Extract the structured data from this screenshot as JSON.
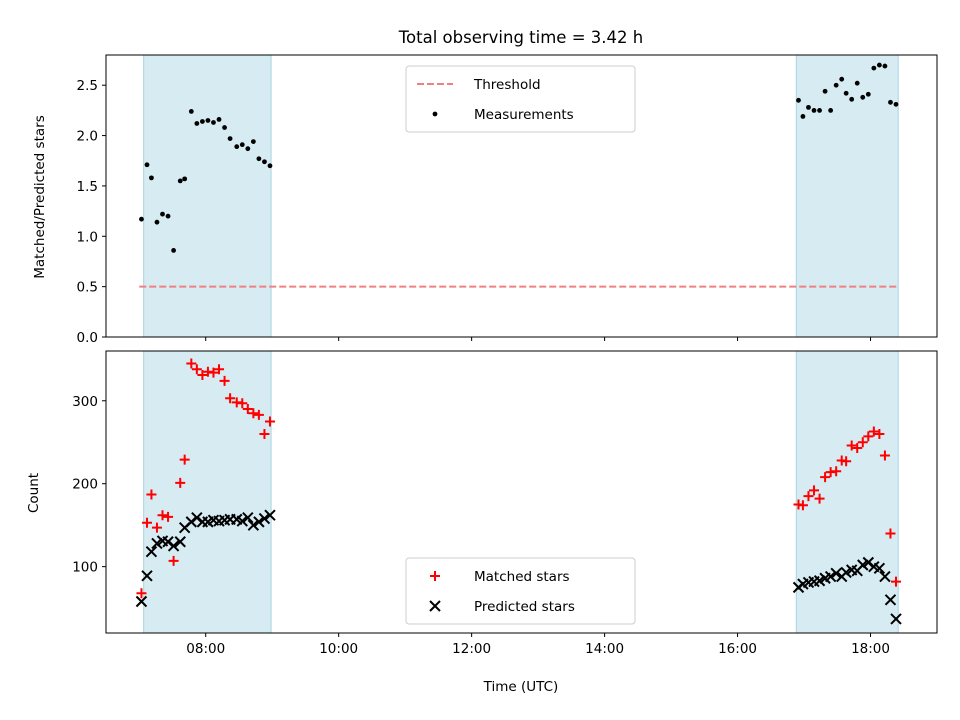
{
  "chart_data": {
    "title": "Total observing time = 3.42 h",
    "xlabel": "Time (UTC)",
    "x_unit": "hours UTC",
    "xlim": [
      "06:30",
      "19:00"
    ],
    "x_ticks": [
      "08:00",
      "10:00",
      "12:00",
      "14:00",
      "16:00",
      "18:00"
    ],
    "shaded_intervals": [
      [
        "07:04",
        "08:59"
      ],
      [
        "16:53",
        "18:25"
      ]
    ],
    "panels": [
      {
        "type": "scatter",
        "ylabel": "Matched/Predicted stars",
        "ylim": [
          0,
          2.8
        ],
        "y_ticks": [
          "0.0",
          "0.5",
          "1.0",
          "1.5",
          "2.0",
          "2.5"
        ],
        "legend": {
          "position": "upper center",
          "entries": [
            "Threshold",
            "Measurements"
          ]
        },
        "threshold": {
          "name": "Threshold",
          "value": 0.5,
          "color": "#f08080",
          "style": "dashed"
        },
        "series": [
          {
            "name": "Measurements",
            "color": "#000000",
            "marker": "dot",
            "x": [
              "07:02",
              "07:07",
              "07:11",
              "07:16",
              "07:21",
              "07:26",
              "07:31",
              "07:37",
              "07:41",
              "07:47",
              "07:52",
              "07:57",
              "08:02",
              "08:07",
              "08:12",
              "08:17",
              "08:22",
              "08:28",
              "08:33",
              "08:38",
              "08:43",
              "08:48",
              "08:53",
              "08:58",
              "16:55",
              "16:59",
              "17:04",
              "17:09",
              "17:14",
              "17:19",
              "17:24",
              "17:29",
              "17:34",
              "17:38",
              "17:43",
              "17:48",
              "17:53",
              "17:58",
              "18:03",
              "18:08",
              "18:13",
              "18:18",
              "18:23"
            ],
            "y": [
              1.17,
              1.71,
              1.58,
              1.14,
              1.22,
              1.2,
              0.86,
              1.55,
              1.57,
              2.24,
              2.12,
              2.14,
              2.15,
              2.13,
              2.16,
              2.08,
              1.97,
              1.89,
              1.91,
              1.87,
              1.94,
              1.77,
              1.74,
              1.7,
              2.35,
              2.19,
              2.28,
              2.25,
              2.25,
              2.44,
              2.25,
              2.5,
              2.56,
              2.42,
              2.36,
              2.52,
              2.38,
              2.41,
              2.67,
              2.7,
              2.69,
              2.33,
              2.31
            ]
          }
        ]
      },
      {
        "type": "scatter",
        "ylabel": "Count",
        "ylim": [
          20,
          360
        ],
        "y_ticks": [
          "100",
          "200",
          "300"
        ],
        "legend": {
          "position": "lower center",
          "entries": [
            "Matched stars",
            "Predicted stars"
          ]
        },
        "series": [
          {
            "name": "Matched stars",
            "color": "#ff0000",
            "marker": "plus",
            "x": [
              "07:02",
              "07:07",
              "07:11",
              "07:16",
              "07:21",
              "07:26",
              "07:31",
              "07:37",
              "07:41",
              "07:47",
              "07:52",
              "07:57",
              "08:02",
              "08:07",
              "08:12",
              "08:17",
              "08:22",
              "08:28",
              "08:33",
              "08:38",
              "08:43",
              "08:48",
              "08:53",
              "08:58",
              "16:55",
              "16:59",
              "17:04",
              "17:09",
              "17:14",
              "17:19",
              "17:24",
              "17:29",
              "17:34",
              "17:38",
              "17:43",
              "17:48",
              "17:53",
              "17:58",
              "18:03",
              "18:08",
              "18:13",
              "18:18",
              "18:23"
            ],
            "y": [
              68,
              153,
              187,
              147,
              162,
              160,
              107,
              201,
              229,
              345,
              338,
              331,
              335,
              334,
              338,
              324,
              303,
              298,
              297,
              290,
              285,
              283,
              260,
              275,
              175,
              174,
              185,
              192,
              182,
              208,
              214,
              215,
              228,
              227,
              246,
              243,
              250,
              257,
              263,
              260,
              234,
              140,
              82
            ]
          },
          {
            "name": "Predicted stars",
            "color": "#000000",
            "marker": "x",
            "x": [
              "07:02",
              "07:07",
              "07:11",
              "07:16",
              "07:21",
              "07:26",
              "07:31",
              "07:37",
              "07:41",
              "07:47",
              "07:52",
              "07:57",
              "08:02",
              "08:07",
              "08:12",
              "08:17",
              "08:22",
              "08:28",
              "08:33",
              "08:38",
              "08:43",
              "08:48",
              "08:53",
              "08:58",
              "16:55",
              "16:59",
              "17:04",
              "17:09",
              "17:14",
              "17:19",
              "17:24",
              "17:29",
              "17:34",
              "17:38",
              "17:43",
              "17:48",
              "17:53",
              "17:58",
              "18:03",
              "18:08",
              "18:13",
              "18:18",
              "18:23"
            ],
            "y": [
              58,
              89,
              118,
              128,
              131,
              130,
              125,
              130,
              147,
              154,
              159,
              154,
              154,
              156,
              155,
              156,
              157,
              157,
              155,
              159,
              150,
              154,
              158,
              162,
              75,
              79,
              81,
              82,
              83,
              86,
              88,
              92,
              88,
              93,
              96,
              95,
              102,
              105,
              100,
              98,
              88,
              60,
              37
            ]
          }
        ]
      }
    ]
  }
}
